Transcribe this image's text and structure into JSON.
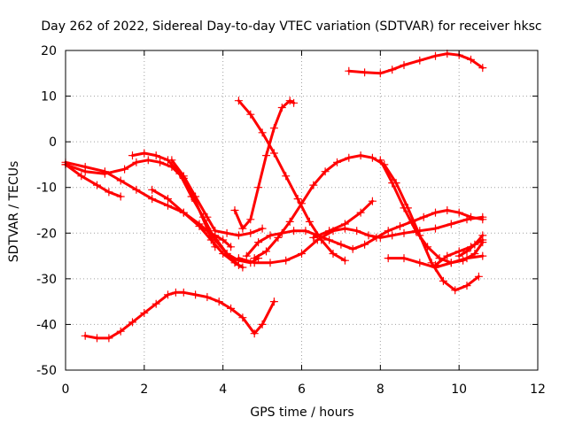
{
  "chart_data": {
    "type": "scatter",
    "title": "Day 262 of 2022, Sidereal Day-to-day VTEC variation (SDTVAR) for receiver hksc",
    "xlabel": "GPS time / hours",
    "ylabel": "SDTVAR / TECUs",
    "xlim": [
      0,
      12
    ],
    "ylim": [
      -50,
      20
    ],
    "xticks": [
      0,
      2,
      4,
      6,
      8,
      10,
      12
    ],
    "yticks": [
      -50,
      -40,
      -30,
      -20,
      -10,
      0,
      10,
      20
    ],
    "xtick_labels": [
      "0",
      "2",
      "4",
      "6",
      "8",
      "10",
      "12"
    ],
    "ytick_labels": [
      "-50",
      "-40",
      "-30",
      "-20",
      "-10",
      "0",
      "10",
      "20"
    ],
    "grid": true,
    "marker": "plus",
    "color": "#ff0000",
    "series": [
      {
        "name": "s1",
        "x": [
          7.2,
          7.6,
          8.0,
          8.3,
          8.6,
          9.0,
          9.4,
          9.7,
          10.0,
          10.3,
          10.6
        ],
        "y": [
          15.5,
          15.2,
          15.0,
          15.8,
          16.8,
          17.8,
          18.8,
          19.3,
          19.0,
          18.0,
          16.2
        ]
      },
      {
        "name": "s2",
        "x": [
          0.5,
          0.8,
          1.1,
          1.4,
          1.7,
          2.0,
          2.3,
          2.6,
          2.8,
          3.0,
          3.3,
          3.6,
          3.9,
          4.2,
          4.5,
          4.8,
          5.0,
          5.3
        ],
        "y": [
          -42.5,
          -43.0,
          -43.0,
          -41.5,
          -39.5,
          -37.5,
          -35.5,
          -33.5,
          -33.0,
          -33.0,
          -33.5,
          -34.0,
          -35.0,
          -36.5,
          -38.5,
          -42.0,
          -40.0,
          -35.0
        ]
      },
      {
        "name": "s3",
        "x": [
          4.4,
          4.7,
          5.0,
          5.3,
          5.6,
          5.9,
          6.2,
          6.5,
          6.8,
          7.1
        ],
        "y": [
          9.0,
          6.0,
          2.0,
          -2.5,
          -7.5,
          -12.5,
          -17.5,
          -21.5,
          -24.5,
          -26.0
        ]
      },
      {
        "name": "s4",
        "x": [
          4.3,
          4.5,
          4.7,
          4.9,
          5.1,
          5.3,
          5.5,
          5.7,
          5.8
        ],
        "y": [
          -15.0,
          -19.0,
          -17.0,
          -10.0,
          -3.0,
          3.0,
          7.5,
          9.0,
          8.5
        ]
      },
      {
        "name": "s5",
        "x": [
          4.4,
          4.8,
          5.2,
          5.6,
          6.0,
          6.4,
          6.8,
          7.1,
          7.4,
          7.7,
          8.0,
          8.3,
          8.6,
          9.0,
          9.4,
          9.8,
          10.2,
          10.6
        ],
        "y": [
          -25.5,
          -26.5,
          -26.5,
          -26.0,
          -24.5,
          -21.5,
          -19.5,
          -19.0,
          -19.5,
          -20.5,
          -21.0,
          -20.5,
          -20.0,
          -19.5,
          -19.0,
          -18.0,
          -17.0,
          -16.5
        ]
      },
      {
        "name": "s6",
        "x": [
          0.0,
          0.5,
          1.0,
          1.5,
          1.8,
          2.1,
          2.4,
          2.7,
          3.0,
          3.3,
          3.6,
          3.8
        ],
        "y": [
          -5.0,
          -6.5,
          -7.0,
          -6.0,
          -4.5,
          -4.0,
          -4.5,
          -5.5,
          -8.0,
          -13.0,
          -19.0,
          -23.0
        ]
      },
      {
        "name": "s7",
        "x": [
          0.0,
          0.5,
          1.0,
          1.4,
          1.8,
          2.2,
          2.6,
          3.0,
          3.4,
          3.8,
          4.1,
          4.4
        ],
        "y": [
          -4.5,
          -5.5,
          -6.5,
          -8.5,
          -10.5,
          -12.5,
          -14.0,
          -15.5,
          -18.0,
          -21.0,
          -24.5,
          -27.0
        ]
      },
      {
        "name": "s8",
        "x": [
          0.0,
          0.4,
          0.8,
          1.1,
          1.4
        ],
        "y": [
          -5.0,
          -7.5,
          -9.5,
          -11.0,
          -12.0
        ]
      },
      {
        "name": "s9",
        "x": [
          1.7,
          2.0,
          2.3,
          2.6,
          2.9,
          3.2,
          3.5,
          3.8,
          4.1,
          4.4,
          4.7,
          4.9
        ],
        "y": [
          -3.0,
          -2.5,
          -3.0,
          -4.0,
          -7.0,
          -12.0,
          -16.5,
          -21.5,
          -24.5,
          -26.0,
          -26.5,
          -25.5
        ]
      },
      {
        "name": "s10",
        "x": [
          2.7,
          3.0,
          3.3,
          3.6,
          3.8,
          4.1,
          4.4,
          4.7,
          5.0
        ],
        "y": [
          -4.0,
          -7.5,
          -12.0,
          -16.5,
          -19.5,
          -20.0,
          -20.5,
          -20.0,
          -19.0
        ]
      },
      {
        "name": "s11",
        "x": [
          2.2,
          2.6,
          3.0,
          3.4,
          3.7,
          4.0,
          4.3,
          4.5
        ],
        "y": [
          -10.5,
          -12.5,
          -15.5,
          -18.5,
          -21.5,
          -24.5,
          -26.5,
          -27.5
        ]
      },
      {
        "name": "s12",
        "x": [
          3.6,
          3.8,
          4.0,
          4.2
        ],
        "y": [
          -19.5,
          -20.5,
          -21.5,
          -23.0
        ]
      },
      {
        "name": "s13",
        "x": [
          4.6,
          4.9,
          5.2,
          5.5,
          5.8,
          6.1,
          6.4,
          6.7,
          7.0,
          7.3,
          7.6,
          7.9,
          8.2,
          8.5,
          8.8,
          9.1,
          9.4,
          9.7,
          10.0,
          10.3,
          10.6
        ],
        "y": [
          -25.0,
          -22.0,
          -20.5,
          -20.0,
          -19.5,
          -19.5,
          -20.5,
          -21.5,
          -22.5,
          -23.5,
          -22.5,
          -21.0,
          -19.5,
          -18.5,
          -17.5,
          -16.5,
          -15.5,
          -15.0,
          -15.5,
          -16.5,
          -17.0
        ]
      },
      {
        "name": "s14",
        "x": [
          4.8,
          5.1,
          5.4,
          5.7,
          6.0,
          6.3,
          6.6,
          6.9,
          7.2,
          7.5,
          7.8,
          8.1,
          8.4,
          8.7,
          9.0,
          9.3,
          9.6,
          9.9,
          10.2,
          10.5
        ],
        "y": [
          -25.5,
          -24.0,
          -21.0,
          -17.5,
          -13.5,
          -9.5,
          -6.5,
          -4.5,
          -3.5,
          -3.0,
          -3.5,
          -5.0,
          -9.0,
          -14.5,
          -20.5,
          -26.5,
          -30.5,
          -32.5,
          -31.5,
          -29.5
        ]
      },
      {
        "name": "s15",
        "x": [
          8.0,
          8.3,
          8.6,
          8.9,
          9.2,
          9.5,
          9.8,
          10.1,
          10.4,
          10.6
        ],
        "y": [
          -4.0,
          -9.0,
          -14.5,
          -19.5,
          -23.0,
          -25.5,
          -26.5,
          -26.0,
          -24.5,
          -22.0
        ]
      },
      {
        "name": "s16",
        "x": [
          6.3,
          6.7,
          7.1,
          7.5,
          7.8
        ],
        "y": [
          -21.0,
          -19.5,
          -18.0,
          -15.5,
          -13.0
        ]
      },
      {
        "name": "s17",
        "x": [
          8.2,
          8.6,
          9.0,
          9.4,
          9.8,
          10.2,
          10.6
        ],
        "y": [
          -25.5,
          -25.5,
          -26.5,
          -27.5,
          -26.5,
          -25.5,
          -25.0
        ]
      },
      {
        "name": "s18",
        "x": [
          9.4,
          9.7,
          10.0,
          10.3,
          10.6
        ],
        "y": [
          -27.0,
          -25.0,
          -24.0,
          -23.0,
          -21.5
        ]
      },
      {
        "name": "s19",
        "x": [
          10.0,
          10.2,
          10.4,
          10.6
        ],
        "y": [
          -25.0,
          -24.0,
          -22.5,
          -20.5
        ]
      }
    ]
  }
}
